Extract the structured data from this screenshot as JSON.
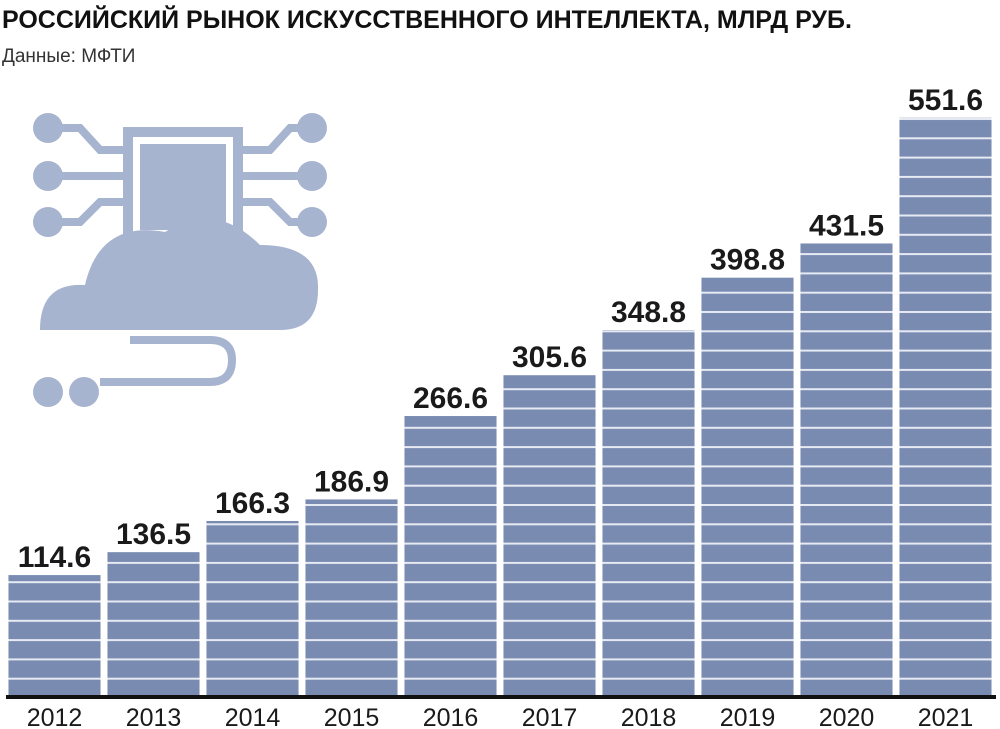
{
  "chart_data": {
    "type": "bar",
    "title": "РОССИЙСКИЙ РЫНОК ИСКУССТВЕННОГО ИНТЕЛЛЕКТА, МЛРД РУБ.",
    "subtitle": "Данные: МФТИ",
    "categories": [
      "2012",
      "2013",
      "2014",
      "2015",
      "2016",
      "2017",
      "2018",
      "2019",
      "2020",
      "2021"
    ],
    "values": [
      114.6,
      136.5,
      166.3,
      186.9,
      266.6,
      305.6,
      348.8,
      398.8,
      431.5,
      551.6
    ],
    "color": "#7a8bb2",
    "ylim": [
      0,
      560
    ]
  }
}
